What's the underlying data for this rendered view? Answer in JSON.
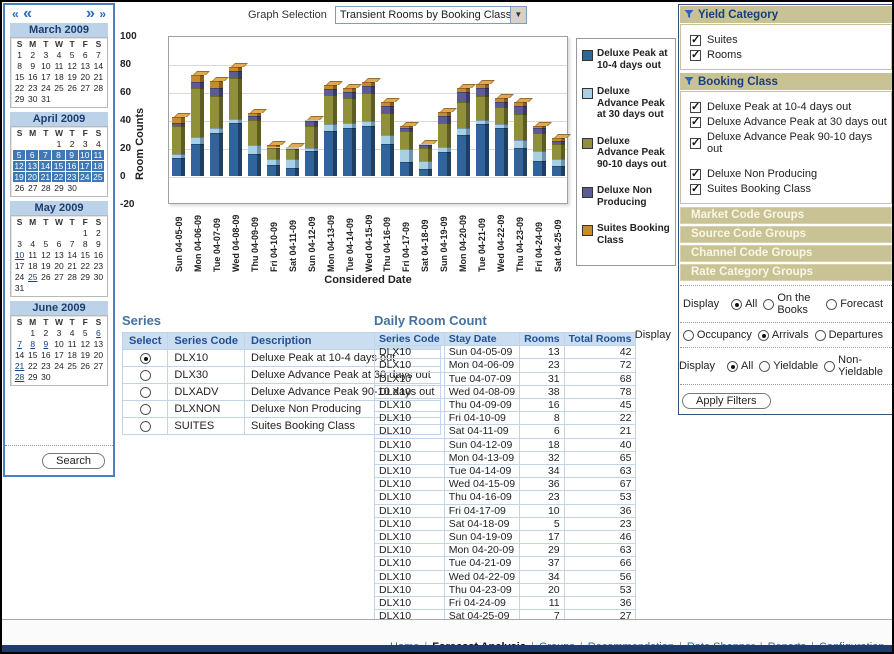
{
  "page": {
    "graph_selection_label": "Graph Selection",
    "graph_selection_value": "Transient Rooms by Booking Class",
    "search_label": "Search",
    "apply_filters_label": "Apply Filters"
  },
  "calendar_nav": {
    "prev_year": "«",
    "prev_month": "«",
    "next_month": "»",
    "next_year": "»"
  },
  "calendars": [
    {
      "title": "March 2009",
      "day_headers": [
        "S",
        "M",
        "T",
        "W",
        "T",
        "F",
        "S"
      ],
      "weeks": [
        [
          1,
          2,
          3,
          4,
          5,
          6,
          7
        ],
        [
          8,
          9,
          10,
          11,
          12,
          13,
          14
        ],
        [
          15,
          16,
          17,
          18,
          19,
          20,
          21
        ],
        [
          22,
          23,
          24,
          25,
          26,
          27,
          28
        ],
        [
          29,
          30,
          31,
          null,
          null,
          null,
          null
        ]
      ],
      "highlighted": [],
      "underlined": []
    },
    {
      "title": "April 2009",
      "day_headers": [
        "S",
        "M",
        "T",
        "W",
        "T",
        "F",
        "S"
      ],
      "weeks": [
        [
          null,
          null,
          null,
          1,
          2,
          3,
          4
        ],
        [
          5,
          6,
          7,
          8,
          9,
          10,
          11
        ],
        [
          12,
          13,
          14,
          15,
          16,
          17,
          18
        ],
        [
          19,
          20,
          21,
          22,
          23,
          24,
          25
        ],
        [
          26,
          27,
          28,
          29,
          30,
          null,
          null
        ]
      ],
      "highlighted": [
        5,
        6,
        7,
        8,
        9,
        10,
        11,
        12,
        13,
        14,
        15,
        16,
        17,
        18,
        19,
        20,
        21,
        22,
        23,
        24,
        25
      ],
      "underlined": []
    },
    {
      "title": "May 2009",
      "day_headers": [
        "S",
        "M",
        "T",
        "W",
        "T",
        "F",
        "S"
      ],
      "weeks": [
        [
          null,
          null,
          null,
          null,
          null,
          1,
          2
        ],
        [
          3,
          4,
          5,
          6,
          7,
          8,
          9
        ],
        [
          10,
          11,
          12,
          13,
          14,
          15,
          16
        ],
        [
          17,
          18,
          19,
          20,
          21,
          22,
          23
        ],
        [
          24,
          25,
          26,
          27,
          28,
          29,
          30
        ],
        [
          31,
          null,
          null,
          null,
          null,
          null,
          null
        ]
      ],
      "highlighted": [],
      "underlined": [
        10,
        25
      ]
    },
    {
      "title": "June 2009",
      "day_headers": [
        "S",
        "M",
        "T",
        "W",
        "T",
        "F",
        "S"
      ],
      "weeks": [
        [
          null,
          1,
          2,
          3,
          4,
          5,
          6
        ],
        [
          7,
          8,
          9,
          10,
          11,
          12,
          13
        ],
        [
          14,
          15,
          16,
          17,
          18,
          19,
          20
        ],
        [
          21,
          22,
          23,
          24,
          25,
          26,
          27
        ],
        [
          28,
          29,
          30,
          null,
          null,
          null,
          null
        ]
      ],
      "highlighted": [],
      "underlined": [
        6,
        7,
        8,
        9,
        21,
        28
      ]
    }
  ],
  "chart_data": {
    "type": "bar",
    "stacked": true,
    "xlabel": "Considered Date",
    "ylabel": "Room Counts",
    "ylim": [
      -20,
      100
    ],
    "yticks": [
      100,
      80,
      60,
      40,
      20,
      0,
      -20
    ],
    "grid": true,
    "legend_position": "right",
    "categories": [
      "Sun 04-05-09",
      "Mon 04-06-09",
      "Tue 04-07-09",
      "Wed 04-08-09",
      "Thu 04-09-09",
      "Fri 04-10-09",
      "Sat 04-11-09",
      "Sun 04-12-09",
      "Mon 04-13-09",
      "Tue 04-14-09",
      "Wed 04-15-09",
      "Thu 04-16-09",
      "Fri 04-17-09",
      "Sat 04-18-09",
      "Sun 04-19-09",
      "Mon 04-20-09",
      "Tue 04-21-09",
      "Wed 04-22-09",
      "Thu 04-23-09",
      "Fri 04-24-09",
      "Sat 04-25-09"
    ],
    "totals": [
      42,
      72,
      68,
      78,
      45,
      22,
      21,
      40,
      65,
      63,
      67,
      53,
      36,
      23,
      46,
      63,
      66,
      56,
      53,
      36,
      27
    ],
    "series": [
      {
        "name": "Deluxe Peak at 10-4 days out",
        "code": "DLX10",
        "color": "#31639C",
        "side": "#1E3E62",
        "top": "#5585B8",
        "values": [
          13,
          23,
          31,
          38,
          16,
          8,
          6,
          18,
          32,
          34,
          36,
          23,
          10,
          5,
          17,
          29,
          37,
          34,
          20,
          11,
          7
        ]
      },
      {
        "name": "Deluxe Advance Peak at 30 days out",
        "code": "DLX30",
        "color": "#A9CFE5",
        "side": "#6E93AC",
        "top": "#C6E0F0",
        "values": [
          3,
          5,
          3,
          3,
          6,
          4,
          6,
          2,
          5,
          4,
          3,
          6,
          9,
          6,
          4,
          5,
          3,
          3,
          6,
          7,
          5
        ]
      },
      {
        "name": "Deluxe Advance Peak 90-10 days out",
        "code": "DLXADV",
        "color": "#90903B",
        "side": "#5C5C24",
        "top": "#B0B055",
        "values": [
          20,
          35,
          23,
          29,
          18,
          8,
          7,
          16,
          21,
          18,
          20,
          16,
          13,
          9,
          17,
          19,
          17,
          12,
          18,
          13,
          11
        ]
      },
      {
        "name": "Deluxe Non Producing",
        "code": "DLXNON",
        "color": "#5C5C94",
        "side": "#3A3A66",
        "top": "#7C7CB0",
        "values": [
          2,
          4,
          6,
          5,
          3,
          1,
          1,
          3,
          4,
          4,
          5,
          5,
          2,
          2,
          5,
          7,
          6,
          4,
          6,
          3,
          2
        ]
      },
      {
        "name": "Suites Booking Class",
        "code": "SUITES",
        "color": "#C98A2E",
        "side": "#8A5C1C",
        "top": "#E2A94F",
        "values": [
          4,
          5,
          5,
          3,
          2,
          1,
          1,
          1,
          3,
          3,
          3,
          3,
          2,
          1,
          3,
          3,
          3,
          3,
          3,
          2,
          2
        ]
      }
    ]
  },
  "series_table": {
    "title": "Series",
    "headers": [
      "Select",
      "Series Code",
      "Description"
    ],
    "rows": [
      {
        "selected": true,
        "code": "DLX10",
        "description": "Deluxe Peak at 10-4 days out"
      },
      {
        "selected": false,
        "code": "DLX30",
        "description": "Deluxe Advance Peak at 30 days out"
      },
      {
        "selected": false,
        "code": "DLXADV",
        "description": "Deluxe Advance Peak 90-10 days out"
      },
      {
        "selected": false,
        "code": "DLXNON",
        "description": "Deluxe Non Producing"
      },
      {
        "selected": false,
        "code": "SUITES",
        "description": "Suites Booking Class"
      }
    ]
  },
  "daily_room_count": {
    "title": "Daily Room Count",
    "headers": [
      "Series Code",
      "Stay Date",
      "Rooms",
      "Total Rooms"
    ],
    "rows": [
      [
        "DLX10",
        "Sun 04-05-09",
        13,
        42
      ],
      [
        "DLX10",
        "Mon 04-06-09",
        23,
        72
      ],
      [
        "DLX10",
        "Tue 04-07-09",
        31,
        68
      ],
      [
        "DLX10",
        "Wed 04-08-09",
        38,
        78
      ],
      [
        "DLX10",
        "Thu 04-09-09",
        16,
        45
      ],
      [
        "DLX10",
        "Fri 04-10-09",
        8,
        22
      ],
      [
        "DLX10",
        "Sat 04-11-09",
        6,
        21
      ],
      [
        "DLX10",
        "Sun 04-12-09",
        18,
        40
      ],
      [
        "DLX10",
        "Mon 04-13-09",
        32,
        65
      ],
      [
        "DLX10",
        "Tue 04-14-09",
        34,
        63
      ],
      [
        "DLX10",
        "Wed 04-15-09",
        36,
        67
      ],
      [
        "DLX10",
        "Thu 04-16-09",
        23,
        53
      ],
      [
        "DLX10",
        "Fri 04-17-09",
        10,
        36
      ],
      [
        "DLX10",
        "Sat 04-18-09",
        5,
        23
      ],
      [
        "DLX10",
        "Sun 04-19-09",
        17,
        46
      ],
      [
        "DLX10",
        "Mon 04-20-09",
        29,
        63
      ],
      [
        "DLX10",
        "Tue 04-21-09",
        37,
        66
      ],
      [
        "DLX10",
        "Wed 04-22-09",
        34,
        56
      ],
      [
        "DLX10",
        "Thu 04-23-09",
        20,
        53
      ],
      [
        "DLX10",
        "Fri 04-24-09",
        11,
        36
      ],
      [
        "DLX10",
        "Sat 04-25-09",
        7,
        27
      ]
    ]
  },
  "filter_panel": {
    "sections": [
      {
        "title": "Yield Category",
        "items": [
          {
            "label": "Suites",
            "checked": true
          },
          {
            "label": "Rooms",
            "checked": true
          }
        ]
      },
      {
        "title": "Booking Class",
        "items": [
          {
            "label": "Deluxe Peak at 10-4 days out",
            "checked": true
          },
          {
            "label": "Deluxe Advance Peak at 30 days out",
            "checked": true
          },
          {
            "label": "Deluxe Advance Peak 90-10 days out",
            "checked": true
          },
          {
            "label": "Deluxe Non Producing",
            "checked": true,
            "gap_before": true
          },
          {
            "label": "Suites Booking Class",
            "checked": true
          }
        ]
      }
    ],
    "collapsed_sections": [
      "Market Code Groups",
      "Source Code Groups",
      "Channel Code Groups",
      "Rate Category Groups"
    ],
    "display_rows": [
      {
        "label": "Display",
        "options": [
          {
            "label": "All",
            "selected": true
          },
          {
            "label": "On the Books",
            "selected": false
          },
          {
            "label": "Forecast",
            "selected": false
          }
        ]
      },
      {
        "label": "Display",
        "options": [
          {
            "label": "Occupancy",
            "selected": false
          },
          {
            "label": "Arrivals",
            "selected": true
          },
          {
            "label": "Departures",
            "selected": false
          }
        ]
      },
      {
        "label": "Display",
        "options": [
          {
            "label": "All",
            "selected": true
          },
          {
            "label": "Yieldable",
            "selected": false
          },
          {
            "label": "Non-Yieldable",
            "selected": false
          }
        ]
      }
    ]
  },
  "footer": {
    "links": [
      {
        "label": "Home",
        "active": false
      },
      {
        "label": "Forecast Analysis",
        "active": true
      },
      {
        "label": "Groups",
        "active": false
      },
      {
        "label": "Recommendation",
        "active": false
      },
      {
        "label": "Rate Shopper",
        "active": false
      },
      {
        "label": "Reports",
        "active": false
      },
      {
        "label": "Configuration",
        "active": false
      }
    ]
  },
  "colors": {
    "accent_blue": "#3E78B6",
    "header_olive": "#C8C295",
    "table_header_blue": "#CBDDF1",
    "footer_navy": "#1F3D6B"
  }
}
